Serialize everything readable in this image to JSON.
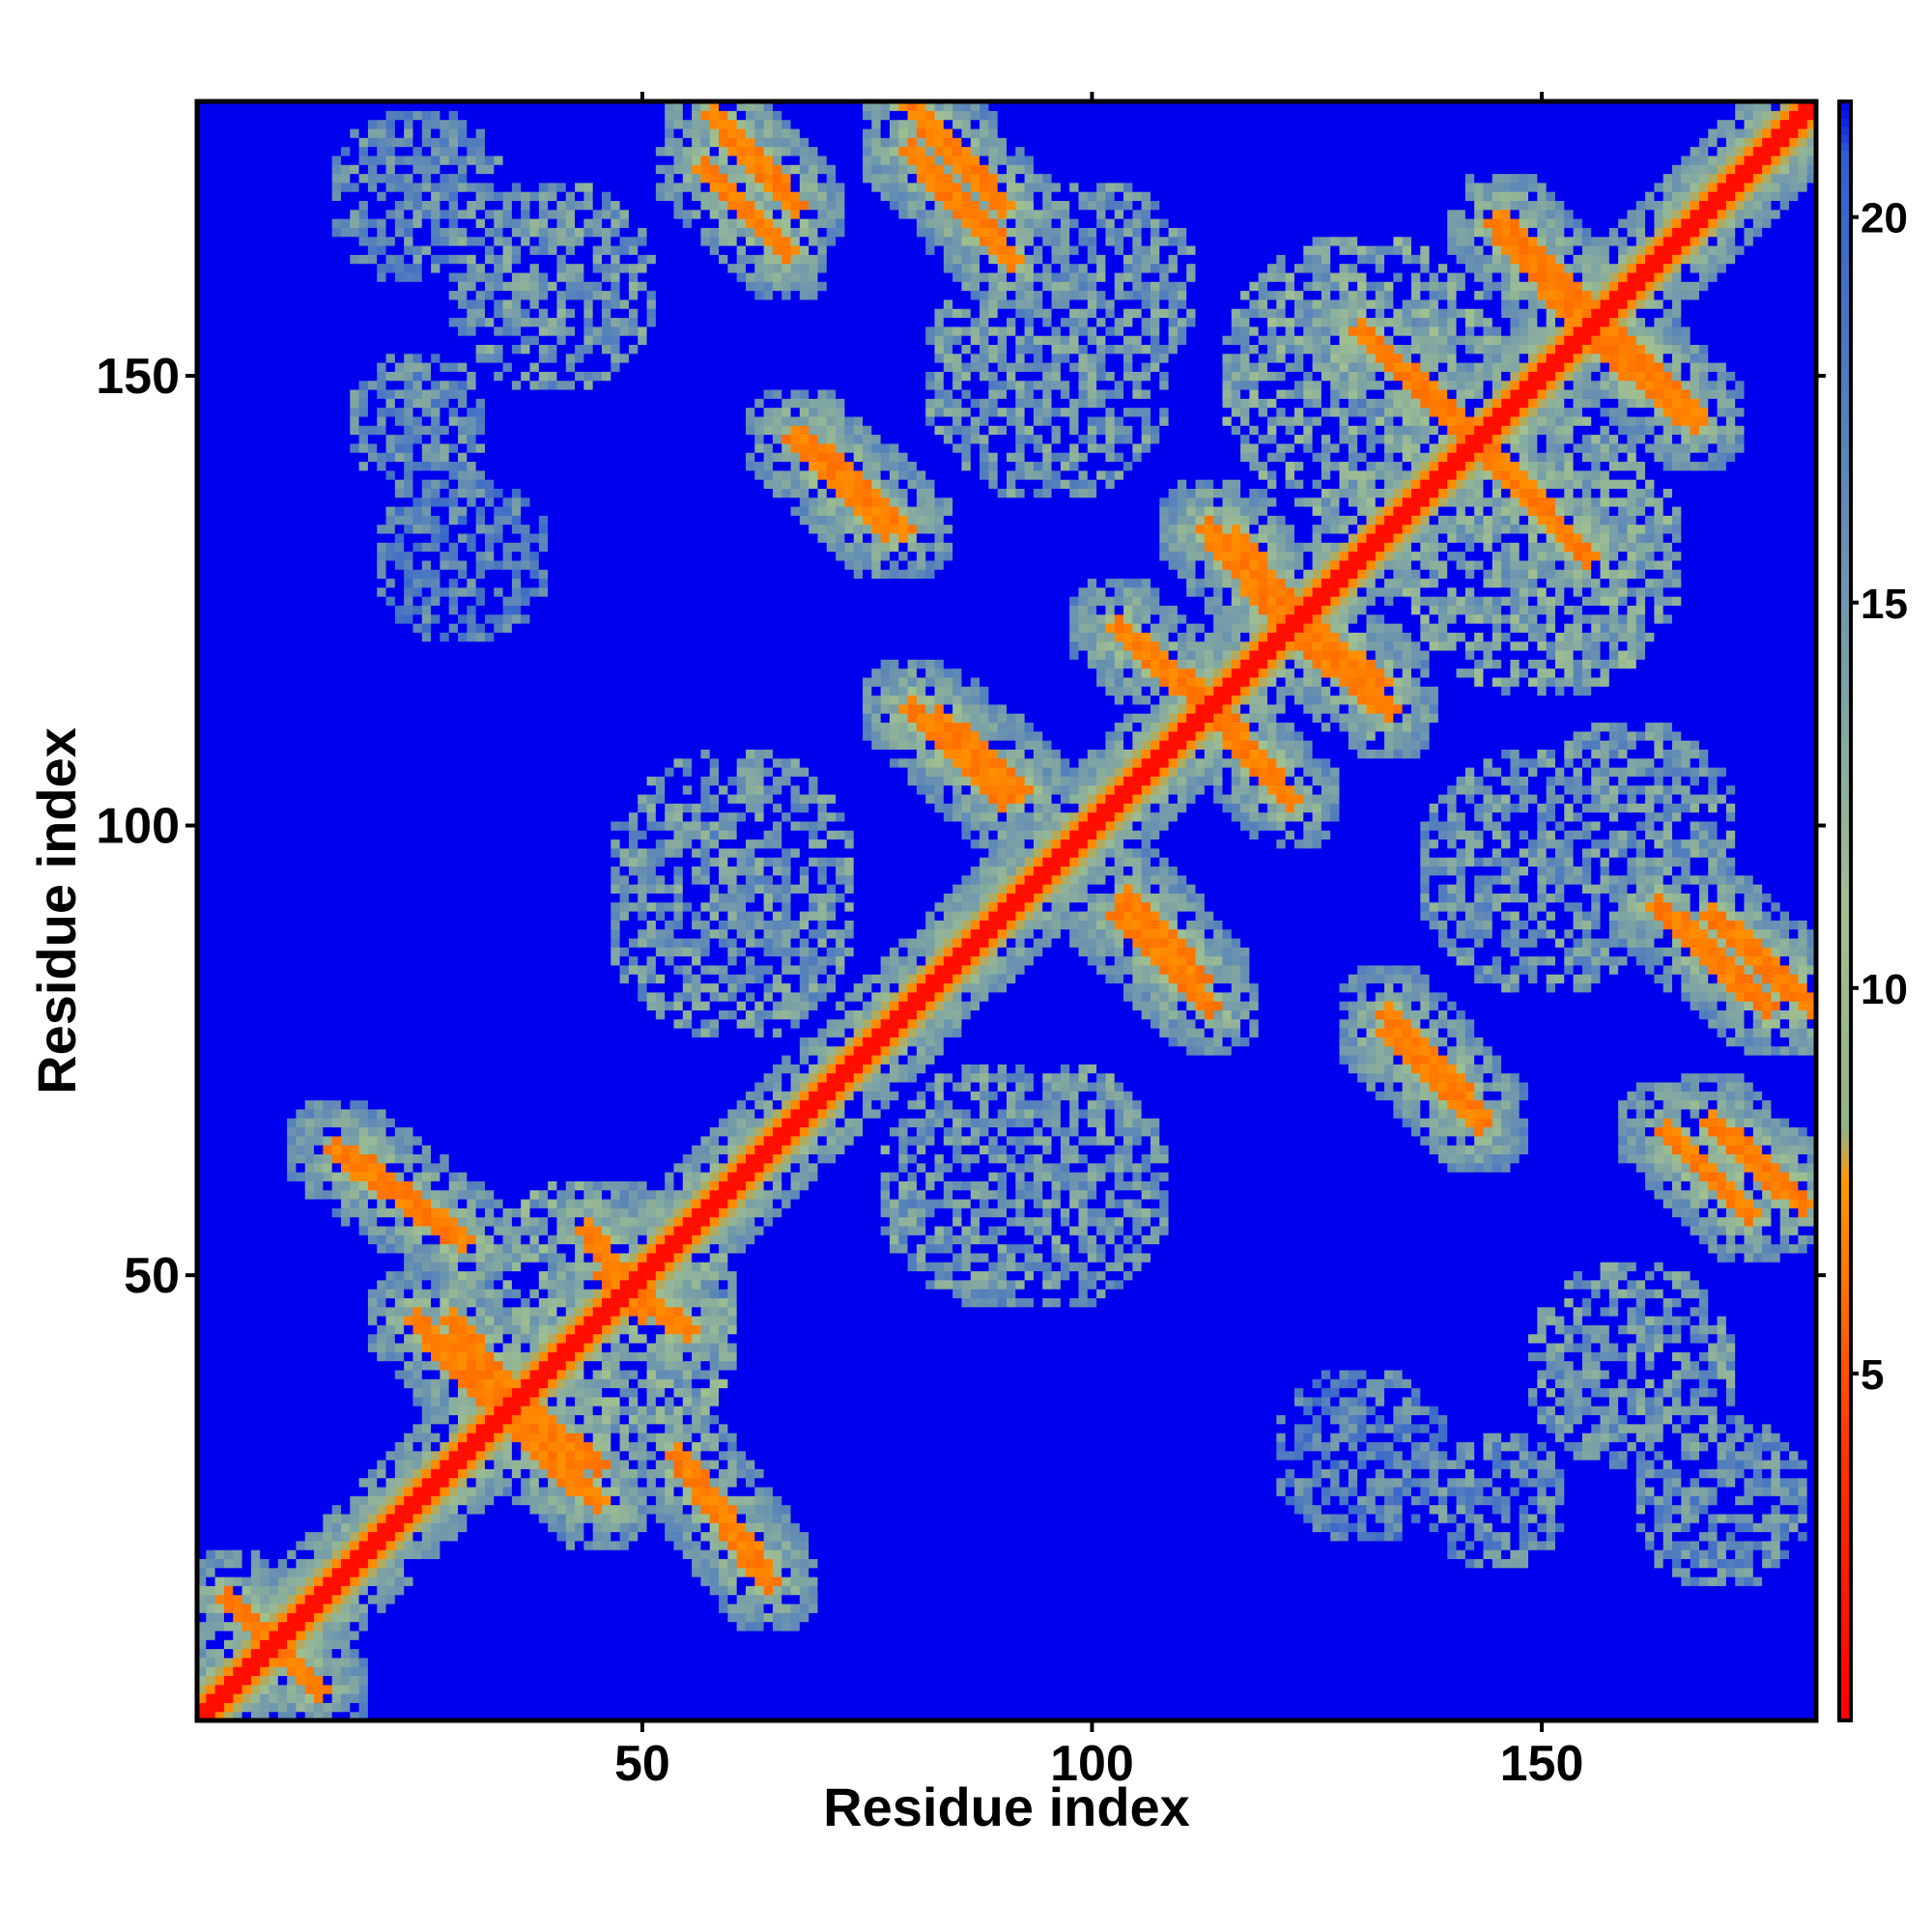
{
  "chart_data": {
    "type": "heatmap",
    "title": "",
    "xlabel": "Residue index",
    "ylabel": "Residue index",
    "x_range": [
      1,
      180
    ],
    "y_range": [
      1,
      180
    ],
    "x_ticks": [
      50,
      100,
      150
    ],
    "y_ticks": [
      50,
      100,
      150
    ],
    "colorbar": {
      "ticks": [
        5,
        10,
        15,
        20
      ],
      "range": [
        0.5,
        21.5
      ],
      "stops": [
        {
          "value": 0.5,
          "color": "#ff0000"
        },
        {
          "value": 4.0,
          "color": "#ff3300"
        },
        {
          "value": 7.5,
          "color": "#ff9900"
        },
        {
          "value": 8.2,
          "color": "#8fb488"
        },
        {
          "value": 11.0,
          "color": "#a0c090"
        },
        {
          "value": 15.0,
          "color": "#6f97ad"
        },
        {
          "value": 20.8,
          "color": "#3060d0"
        },
        {
          "value": 21.5,
          "color": "#0000ee"
        }
      ]
    },
    "background_value": 21.5,
    "diagonal_value": 1.5,
    "contact_bands": [
      {
        "a1": 57,
        "b1": 173,
        "a2": 66,
        "b2": 164,
        "value": 6
      },
      {
        "a1": 80,
        "b1": 175,
        "a2": 91,
        "b2": 163,
        "value": 6
      },
      {
        "a1": 67,
        "b1": 143,
        "a2": 77,
        "b2": 133,
        "value": 6
      },
      {
        "a1": 80,
        "b1": 113,
        "a2": 90,
        "b2": 103,
        "value": 6
      },
      {
        "a1": 104,
        "b1": 92,
        "a2": 112,
        "b2": 83,
        "value": 6
      },
      {
        "a1": 104,
        "b1": 121,
        "a2": 116,
        "b2": 111,
        "value": 6
      },
      {
        "a1": 114,
        "b1": 112,
        "a2": 122,
        "b2": 103,
        "value": 6
      },
      {
        "a1": 116,
        "b1": 132,
        "a2": 123,
        "b2": 123,
        "value": 6
      },
      {
        "a1": 123,
        "b1": 121,
        "a2": 133,
        "b2": 113,
        "value": 6
      },
      {
        "a1": 130,
        "b1": 155,
        "a2": 144,
        "b2": 141,
        "value": 6
      },
      {
        "a1": 146,
        "b1": 167,
        "a2": 156,
        "b2": 157,
        "value": 6
      },
      {
        "a1": 156,
        "b1": 154,
        "a2": 167,
        "b2": 145,
        "value": 6
      },
      {
        "a1": 141,
        "b1": 145,
        "a2": 152,
        "b2": 133,
        "value": 6
      },
      {
        "a1": 133,
        "b1": 79,
        "a2": 143,
        "b2": 68,
        "value": 6
      },
      {
        "a1": 169,
        "b1": 90,
        "a2": 180,
        "b2": 80,
        "value": 6
      },
      {
        "a1": 169,
        "b1": 67,
        "a2": 179,
        "b2": 58,
        "value": 6
      },
      {
        "a1": 18,
        "b1": 63,
        "a2": 30,
        "b2": 54,
        "value": 6
      },
      {
        "a1": 29,
        "b1": 45,
        "a2": 36,
        "b2": 36,
        "value": 6
      },
      {
        "a1": 36,
        "b1": 33,
        "a2": 45,
        "b2": 25,
        "value": 6
      },
      {
        "a1": 56,
        "b1": 27,
        "a2": 64,
        "b2": 16,
        "value": 6
      },
      {
        "a1": 6,
        "b1": 12,
        "a2": 14,
        "b2": 4,
        "value": 6
      },
      {
        "a1": 46,
        "b1": 50,
        "a2": 55,
        "b2": 44,
        "value": 6
      }
    ],
    "contact_regions": [
      {
        "cx": 40,
        "cy": 160,
        "r": 12,
        "value": 12
      },
      {
        "cx": 25,
        "cy": 145,
        "r": 8,
        "value": 13
      },
      {
        "cx": 60,
        "cy": 95,
        "r": 14,
        "value": 12
      },
      {
        "cx": 90,
        "cy": 60,
        "r": 14,
        "value": 12
      },
      {
        "cx": 130,
        "cy": 30,
        "r": 10,
        "value": 14
      },
      {
        "cx": 170,
        "cy": 25,
        "r": 10,
        "value": 13
      },
      {
        "cx": 100,
        "cy": 160,
        "r": 12,
        "value": 12
      },
      {
        "cx": 150,
        "cy": 95,
        "r": 14,
        "value": 12
      },
      {
        "cx": 45,
        "cy": 45,
        "r": 16,
        "value": 11
      },
      {
        "cx": 130,
        "cy": 150,
        "r": 16,
        "value": 11
      }
    ]
  }
}
